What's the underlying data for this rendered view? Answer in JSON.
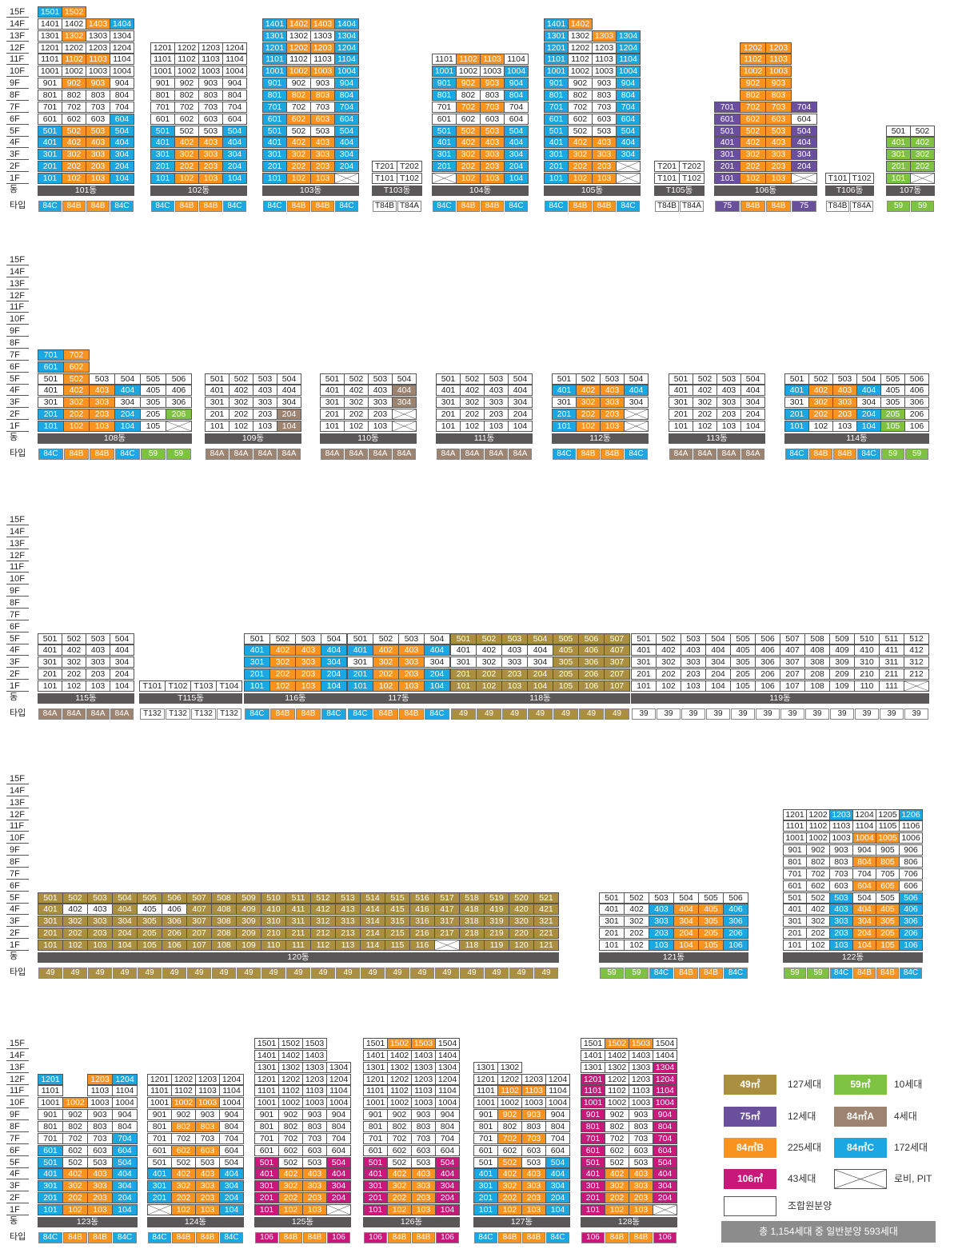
{
  "labels": {
    "dong": "동",
    "type": "타입"
  },
  "floors": [
    "15F",
    "14F",
    "13F",
    "12F",
    "11F",
    "10F",
    "9F",
    "8F",
    "7F",
    "6F",
    "5F",
    "4F",
    "3F",
    "2F",
    "1F"
  ],
  "legend": [
    {
      "area": "49㎡",
      "count": "127세대",
      "cls": "c49"
    },
    {
      "area": "59㎡",
      "count": "10세대",
      "cls": "c59"
    },
    {
      "area": "75㎡",
      "count": "12세대",
      "cls": "c75"
    },
    {
      "area": "84㎡A",
      "count": "4세대",
      "cls": "c84A"
    },
    {
      "area": "84㎡B",
      "count": "225세대",
      "cls": "c84B"
    },
    {
      "area": "84㎡C",
      "count": "172세대",
      "cls": "c84C"
    },
    {
      "area": "106㎡",
      "count": "43세대",
      "cls": "c106"
    },
    {
      "area": "",
      "count": "로비, PIT",
      "cls": "cX"
    },
    {
      "area": "",
      "count": "조합원분양",
      "cls": "cnull"
    }
  ],
  "total": "총 1,154세대 중 일반분양 593세대",
  "rows": [
    {
      "buildings": [
        {
          "dong": "101동",
          "cols": [
            "84C",
            "84B",
            "84B",
            "84C"
          ],
          "w": 30,
          "typeStyle": "c",
          "f": {
            "15": "c:1501:84C,1502:84B",
            "14": "n:1401,1402;b:1403;c:1404",
            "13": "n:1301;b:1302;n:1303,1304",
            "12": "n:1201,1202,1203,1204",
            "11": "n:1101;b:1102,1103;n:1104",
            "10": "n:1001,1002,1003,1004",
            "9": "n:901;b:902,903;n:904",
            "8": "n:801,802,803,804",
            "7": "n:701,702,703,704",
            "6": "n:601,602,603;c:604",
            "5": "c:501;b:502,503;c:504",
            "4": "c:401;b:402,403;c:404",
            "3": "c:301;b:302,303;c:304",
            "2": "c:201;b:202,203;c:204",
            "1": "c:101;b:102,103;c:104"
          }
        },
        {
          "dong": "102동",
          "cols": [
            "84C",
            "84B",
            "84B",
            "84C"
          ],
          "w": 30,
          "f": {
            "12": "n:1201,1202,1203,1204",
            "11": "n:1101,1102,1103,1104",
            "10": "n:1001,1002,1003,1004",
            "9": "n:901,902,903,904",
            "8": "n:801,802,803,804",
            "7": "n:701,702,703,704",
            "6": "n:601,602,603,604",
            "5": "c:501;n:502,503;c:504",
            "4": "c:401;b:402,403;c:404",
            "3": "c:301;b:302,303;c:304",
            "2": "c:201;b:202,203;c:204",
            "1": "c:101;b:102,103;c:104"
          }
        },
        {
          "dong": "103동",
          "cols": [
            "84C",
            "84B",
            "84B",
            "84C"
          ],
          "w": 30,
          "f": {
            "14": "c:1401;b:1402,1403;c:1404",
            "13": "c:1301;n:1302,1303;c:1304",
            "12": "c:1201;b:1202,1203;c:1204",
            "11": "c:1101;n:1102,1103;c:1104",
            "10": "c:1001;b:1002,1003;c:1004",
            "9": "c:901;n:902,903;c:904",
            "8": "c:801;b:802,803;c:804",
            "7": "c:701;n:702,703;c:704",
            "6": "c:601;b:602,603;c:604",
            "5": "c:501;n:502,503;c:504",
            "4": "c:401;b:402,403;c:404",
            "3": "c:301;b:302,303;c:304",
            "2": "c:201;b:202,203;c:204",
            "1": "c:101;b:102,103;x:"
          }
        },
        {
          "dong": "T103동",
          "cols": [
            "T84B",
            "T84A"
          ],
          "w": 31,
          "f": {
            "2": "n:T201,T202",
            "1": "n:T101,T102"
          }
        },
        {
          "dong": "104동",
          "cols": [
            "84C",
            "84B",
            "84B",
            "84C"
          ],
          "w": 30,
          "f": {
            "11": "n:1101;b:1102,1103;n:1104",
            "10": "c:1001;n:1002,1003;c:1004",
            "9": "c:901;b:902,903;c:904",
            "8": "c:801;n:802,803;c:804",
            "7": "n:701;b:702,703;n:704",
            "6": "n:601,602,603,604",
            "5": "c:501;b:502,503;c:504",
            "4": "c:401;b:402,403;c:404",
            "3": "c:301;b:302,303;c:304",
            "2": "c:201;b:202,203;c:204",
            "1": "x:;b:102,103;c:104"
          }
        },
        {
          "dong": "105동",
          "cols": [
            "84C",
            "84B",
            "84B",
            "84C"
          ],
          "w": 30,
          "f": {
            "14": "c:1401;b:1402",
            "13": "c:1301;n:1302;b:1303;c:1304",
            "12": "c:1201;n:1202,1203;c:1204",
            "11": "c:1101;n:1102,1103;c:1104",
            "10": "c:1001;n:1002,1003;c:1004",
            "9": "c:901;n:902,903;c:904",
            "8": "c:801;n:802,803;c:804",
            "7": "c:701;n:702,703;c:704",
            "6": "c:601;n:602,603;c:604",
            "5": "c:501;n:502,503;c:504",
            "4": "c:401;b:402,403;c:404",
            "3": "c:301;b:302,303;c:304",
            "2": "c:201;b:202,203;x:",
            "1": "c:101;b:102,103;x:"
          }
        },
        {
          "dong": "T105동",
          "cols": [
            "T84B",
            "T84A"
          ],
          "w": 31,
          "f": {
            "2": "n:T201,T202",
            "1": "n:T101,T102"
          }
        },
        {
          "dong": "106동",
          "cols": [
            "75",
            "84B",
            "84B",
            "75"
          ],
          "w": 32,
          "f": {
            "12": "e:;b:1202,1203",
            "11": "e:;b:1102,1103",
            "10": "e:;b:1002,1003",
            "9": "e:;b:902,903",
            "8": "e:;b:802,803",
            "7": "v:701;b:702,703;v:704",
            "6": "v:601;b:602,603;n:604",
            "5": "v:501;b:502,503;v:504",
            "4": "v:401;b:402,403;v:404",
            "3": "v:301;b:302,303;v:304",
            "2": "v:201;b:202,203;v:204",
            "1": "v:101;b:102,103;x:"
          }
        },
        {
          "dong": "T106동",
          "cols": [
            "T84B",
            "T84A"
          ],
          "w": 30,
          "f": {
            "1": "n:T101,T102"
          }
        },
        {
          "dong": "107동",
          "cols": [
            "59",
            "59"
          ],
          "w": 30,
          "f": {
            "5": "n:501,502",
            "4": "g:401,402",
            "3": "g:301,302",
            "2": "g:201,202",
            "1": "g:101;x:"
          }
        }
      ]
    },
    {
      "buildings": [
        {
          "dong": "108동",
          "cols": [
            "84C",
            "84B",
            "84B",
            "84C",
            "59",
            "59"
          ],
          "w": 32,
          "f": {
            "7": "c:701;b:702",
            "6": "c:601;b:602",
            "5": "n:501;b:502;n:503,504,505,506",
            "4": "n:401;b:402,403;c:404;n:405,406",
            "3": "n:301;b:302,303;n:304,305,306",
            "2": "c:201;b:202,203;c:204;n:205;g:206",
            "1": "c:101;b:102,103;c:104;n:105;x:"
          }
        },
        {
          "dong": "109동",
          "cols": [
            "84A",
            "84A",
            "84A",
            "84A"
          ],
          "w": 30,
          "f": {
            "5": "n:501,502,503,504",
            "4": "n:401,402,403,404",
            "3": "n:301,302,303,304",
            "2": "n:201,202,203;a:204",
            "1": "n:101,102,103;a:104"
          }
        },
        {
          "dong": "110동",
          "cols": [
            "84A",
            "84A",
            "84A",
            "84A"
          ],
          "w": 30,
          "f": {
            "5": "n:501,502,503,504",
            "4": "n:401,402,403;a:404",
            "3": "n:301,302,303;a:304",
            "2": "n:201,202,203;x:",
            "1": "n:101,102,103;x:"
          }
        },
        {
          "dong": "111동",
          "cols": [
            "84A",
            "84A",
            "84A",
            "84A"
          ],
          "w": 30,
          "f": {
            "5": "n:501,502,503,504",
            "4": "n:401,402,403,404",
            "3": "n:301,302,303,304",
            "2": "n:201,202,203,204",
            "1": "n:101,102,103,104"
          }
        },
        {
          "dong": "112동",
          "cols": [
            "84C",
            "84B",
            "84B",
            "84C"
          ],
          "w": 30,
          "f": {
            "5": "n:501,502,503,504",
            "4": "c:401;b:402,403;c:404",
            "3": "n:301;b:302,303;n:304",
            "2": "c:201;b:202,203;x:",
            "1": "c:101;b:102,103;x:"
          }
        },
        {
          "dong": "113동",
          "cols": [
            "84A",
            "84A",
            "84A",
            "84A"
          ],
          "w": 30,
          "f": {
            "5": "n:501,502,503,504",
            "4": "n:401,402,403,404",
            "3": "n:301,302,303,304",
            "2": "n:201,202,203,204",
            "1": "n:101,102,103,104"
          }
        },
        {
          "dong": "114동",
          "cols": [
            "84C",
            "84B",
            "84B",
            "84C",
            "59",
            "59"
          ],
          "w": 30,
          "f": {
            "5": "n:501,502,503,504,505,506",
            "4": "c:401;b:402,403;c:404;n:405,406",
            "3": "n:301;b:302,303;n:304,305,306",
            "2": "c:201;b:202,203;c:204;g:205;n:206",
            "1": "c:101;n:102,103;c:104;g:105;n:106"
          }
        }
      ]
    },
    {
      "buildings": [
        {
          "dong": "115동",
          "cols": [
            "84A",
            "84A",
            "84A",
            "84A"
          ],
          "w": 30,
          "f": {
            "5": "n:501,502,503,504",
            "4": "n:401,402,403,404",
            "3": "n:301,302,303,304",
            "2": "n:201,202,203,204",
            "1": "n:101,102,103,104"
          }
        },
        {
          "dong": "T115동",
          "cols": [
            "T132",
            "T132",
            "T132",
            "T132"
          ],
          "w": 32,
          "f": {
            "1": "n:T101,T102,T103,T104"
          }
        },
        {
          "dong": "116동",
          "cols": [
            "84C",
            "84B",
            "84B",
            "84C"
          ],
          "w": 32,
          "f": {
            "5": "n:501,502,503,504",
            "4": "c:401;b:402,403;c:404",
            "3": "c:301;b:302,303;c:304",
            "2": "c:201;b:202,203;c:204",
            "1": "c:101;b:102,103;c:104"
          }
        },
        {
          "dong": "117동",
          "cols": [
            "84C",
            "84B",
            "84B",
            "84C"
          ],
          "w": 32,
          "f": {
            "5": "n:501,502,503,504",
            "4": "c:401;b:402,403;c:404",
            "3": "n:301;b:302,303;n:304",
            "2": "c:201;b:202,203;c:204",
            "1": "c:101;b:102,103;c:104"
          }
        },
        {
          "dong": "118동",
          "cols": [
            "49",
            "49",
            "49",
            "49",
            "49",
            "49",
            "49"
          ],
          "w": 32,
          "f": {
            "5": "o:501,502,503,504,505,506,507",
            "4": "n:401,402,403,404;o:405,406,407",
            "3": "n:301,302,303,304;o:305,306,307",
            "2": "o:201,202,203,204,205,206,207",
            "1": "o:101,102,103,104,105,106,107"
          }
        },
        {
          "dong": "119동",
          "cols": [
            "39",
            "39",
            "39",
            "39",
            "39",
            "39",
            "39",
            "39",
            "39",
            "39",
            "39",
            "39"
          ],
          "w": 31,
          "f": {
            "5": "n:501,502,503,504,505,506,507,508,509,510,511,512",
            "4": "n:401,402,403,404,405,406,407,408,409,410,411,412",
            "3": "n:301,302,303,304,305,306,307,308,309,310,311,312",
            "2": "n:201,202,203,204,205,206,207,208,209,210,211,212",
            "1": "n:101,102,103,104,105,106,107,108,109,110,111;x:"
          }
        }
      ]
    },
    {
      "buildings": [
        {
          "dong": "120동",
          "cols": [
            "49",
            "49",
            "49",
            "49",
            "49",
            "49",
            "49",
            "49",
            "49",
            "49",
            "49",
            "49",
            "49",
            "49",
            "49",
            "49",
            "49",
            "49",
            "49",
            "49",
            "49"
          ],
          "w": 31,
          "f": {
            "5": "o:501,502,503,504,505,506,507,508,509,510,511,512,513,514,515,516,517,518,519,520,521",
            "4": "o:401;n:402,403;o:404;n:405,406;o:407,408,409,410,411,412,413,414,415,416,417,418,419,420,421",
            "3": "o:301,302,303,304,305,306,307,308,309,310,311,312,313,314,315,316,317,318,319,320,321",
            "2": "o:201,202,203,204,205,206,207,208,209,210,211,212,213,214,215,216,217,218,219,220,221",
            "1": "o:101,102,103,104,105,106,107,108,109,110,111,112,113,114,115,116;x:;o:118,119,120,121"
          }
        },
        {
          "dong": "121동",
          "cols": [
            "59",
            "59",
            "84C",
            "84B",
            "84B",
            "84C"
          ],
          "w": 31,
          "f": {
            "5": "n:501,502,503,504,505,506",
            "4": "n:401,402;c:403;b:404,405;c:406",
            "3": "n:301,302;c:303;b:304,305;c:306",
            "2": "n:201,202;c:203;b:204,205;c:206",
            "1": "n:101,102;c:103;b:104,105;c:106"
          }
        },
        {
          "dong": "122동",
          "cols": [
            "59",
            "59",
            "84C",
            "84B",
            "84B",
            "84C"
          ],
          "w": 29,
          "f": {
            "12": "n:1201,1202;c:1203;n:1204,1205;c:1206",
            "11": "n:1101,1102,1103,1104,1105,1106",
            "10": "n:1001,1002,1003;b:1004,1005;n:1006",
            "9": "n:901,902,903,904,905,906",
            "8": "n:801,802,803;b:804,805;n:806",
            "7": "n:701,702,703,704,705,706",
            "6": "n:601,602,603;b:604,605;n:606",
            "5": "n:501,502;c:503;n:504,505;c:506",
            "4": "n:401,402;c:403;b:404,405;c:406",
            "3": "n:301,302;c:303;b:304,305;c:306",
            "2": "n:201,202;c:203;b:204,205;c:206",
            "1": "n:101,102;c:103;b:104,105;c:106"
          }
        }
      ]
    },
    {
      "buildings": [
        {
          "dong": "123동",
          "cols": [
            "84C",
            "84B",
            "84B",
            "84C"
          ],
          "w": 31,
          "f": {
            "12": "c:1201;e:;b:1203;c:1204",
            "11": "n:1101;e:;n:1103,1104",
            "10": "n:1001;b:1002;n:1003,1004",
            "9": "n:901,902,903,904",
            "8": "n:801,802,803,804",
            "7": "n:701,702,703;c:704",
            "6": "c:601;n:602,603;c:604",
            "5": "c:501;n:502,503;c:504",
            "4": "c:401;b:402,403;c:404",
            "3": "c:301;b:302,303;c:304",
            "2": "c:201;b:202,203;c:204",
            "1": "c:101;b:102,103;c:104"
          }
        },
        {
          "dong": "124동",
          "cols": [
            "84C",
            "84B",
            "84B",
            "84C"
          ],
          "w": 30,
          "f": {
            "12": "n:1201,1202,1203,1204",
            "11": "n:1101,1102,1103,1104",
            "10": "n:1001;b:1002,1003;n:1004",
            "9": "n:901,902,903,904",
            "8": "n:801;b:802,803;n:804",
            "7": "n:701,702,703,704",
            "6": "n:601;b:602,603;n:604",
            "5": "n:501,502,503,504",
            "4": "c:401;b:402,403;c:404",
            "3": "c:301;b:302,303;c:304",
            "2": "c:201;b:202,203;c:204",
            "1": "x:;b:102,103;c:104"
          }
        },
        {
          "dong": "125동",
          "cols": [
            "106",
            "84B",
            "84B",
            "106"
          ],
          "w": 30,
          "f": {
            "15": "n:1501,1502,1503",
            "14": "n:1401,1402,1403",
            "13": "n:1301,1302,1303,1304",
            "12": "n:1201,1202,1203,1204",
            "11": "n:1101,1102,1103,1104",
            "10": "n:1001,1002,1003,1004",
            "9": "n:901,902,903,904",
            "8": "n:801,802,803,804",
            "7": "n:701,702,703,704",
            "6": "n:601,602,603,604",
            "5": "m:501;n:502,503;m:504",
            "4": "m:401;b:402,403;m:404",
            "3": "m:301;b:302,303;m:304",
            "2": "m:201;b:202,203;m:204",
            "1": "m:101;b:102,103;x:"
          }
        },
        {
          "dong": "126동",
          "cols": [
            "106",
            "84B",
            "84B",
            "106"
          ],
          "w": 30,
          "f": {
            "15": "n:1501;b:1502,1503;n:1504",
            "14": "n:1401,1402,1403,1404",
            "13": "n:1301,1302,1303,1304",
            "12": "n:1201,1202,1203,1204",
            "11": "n:1101,1102,1103,1104",
            "10": "n:1001,1002,1003,1004",
            "9": "n:901,902,903,904",
            "8": "n:801,802,803,804",
            "7": "n:701,702,703,704",
            "6": "n:601,602,603,604",
            "5": "m:501;n:502,503;m:504",
            "4": "m:401;b:402,403;m:404",
            "3": "m:301;b:302,303;m:304",
            "2": "m:201;b:202,203;m:204",
            "1": "m:101;b:102,103;m:104"
          }
        },
        {
          "dong": "127동",
          "cols": [
            "84C",
            "84B",
            "84B",
            "84C"
          ],
          "w": 30,
          "f": {
            "13": "n:1301,1302",
            "12": "n:1201,1202,1203,1204",
            "11": "n:1101;b:1102,1103;n:1104",
            "10": "n:1001,1002,1003,1004",
            "9": "n:901;b:902,903;n:904",
            "8": "n:801,802,803,804",
            "7": "n:701;b:702,703;n:704",
            "6": "n:601,602,603,604",
            "5": "n:501;b:502;n:503;c:504",
            "4": "c:401;b:402,403;c:404",
            "3": "c:301;b:302,303;c:304",
            "2": "c:201;b:202,203;c:204",
            "1": "c:101;b:102,103;c:104"
          }
        },
        {
          "dong": "128동",
          "cols": [
            "106",
            "84B",
            "84B",
            "106"
          ],
          "w": 30,
          "f": {
            "15": "n:1501;b:1502,1503;n:1504",
            "14": "n:1401,1402,1403,1404",
            "13": "n:1301,1302,1303;m:1304",
            "12": "m:1201;n:1202,1203;m:1204",
            "11": "m:1101;n:1102,1103;m:1104",
            "10": "m:1001;n:1002,1003;m:1004",
            "9": "m:901;n:902,903;m:904",
            "8": "m:801;n:802,803;m:804",
            "7": "m:701;n:702,703;m:704",
            "6": "m:601;n:602,603;m:604",
            "5": "m:501;n:502,503;m:504",
            "4": "m:401;b:402,403;m:404",
            "3": "m:301;b:302,303;m:304",
            "2": "m:201;b:202,203;m:204",
            "1": "m:101;b:102,103;x:"
          }
        }
      ]
    }
  ]
}
